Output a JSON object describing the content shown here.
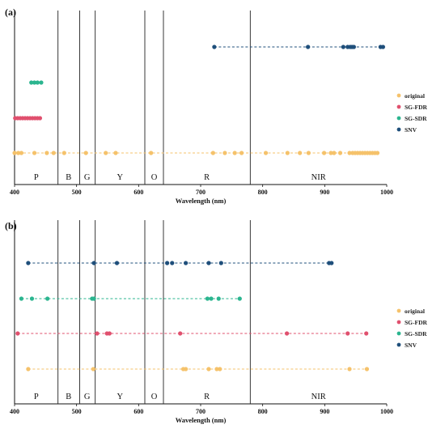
{
  "chart_data": [
    {
      "type": "scatter",
      "panel_label": "(a)",
      "xlabel": "Wavelength (nm)",
      "ylabel": "",
      "xlim": [
        400,
        1000
      ],
      "xticks": [
        "400",
        "500",
        "600",
        "700",
        "800",
        "900",
        "1000"
      ],
      "region_boundaries": [
        470,
        505,
        530,
        610,
        640,
        780
      ],
      "regions": [
        {
          "label": "P",
          "x": 435
        },
        {
          "label": "B",
          "x": 487
        },
        {
          "label": "G",
          "x": 517
        },
        {
          "label": "Y",
          "x": 570
        },
        {
          "label": "O",
          "x": 625
        },
        {
          "label": "R",
          "x": 710
        },
        {
          "label": "NIR",
          "x": 890
        }
      ],
      "legend": {
        "position": "right",
        "entries": [
          "original",
          "SG-FDR",
          "SG-SDR",
          "SNV"
        ]
      },
      "series": [
        {
          "name": "original",
          "color": "#f5c26b",
          "row": 0,
          "x": [
            400,
            406,
            411,
            432,
            452,
            463,
            480,
            515,
            547,
            563,
            620,
            720,
            739,
            755,
            766,
            805,
            840,
            860,
            874,
            899,
            910,
            915,
            925,
            940,
            945,
            949,
            953,
            957,
            961,
            965,
            969,
            973,
            977,
            981,
            985
          ]
        },
        {
          "name": "SG-FDR",
          "color": "#e0506e",
          "row": 1,
          "x": [
            401,
            405,
            409,
            413,
            417,
            421,
            425,
            429,
            433,
            437,
            441
          ]
        },
        {
          "name": "SG-SDR",
          "color": "#2bb58f",
          "row": 2,
          "x": [
            427,
            432,
            437,
            443
          ]
        },
        {
          "name": "SNV",
          "color": "#1f4f7b",
          "row": 3,
          "x": [
            722,
            873,
            930,
            937,
            941,
            944,
            947,
            990,
            994
          ]
        }
      ]
    },
    {
      "type": "scatter",
      "panel_label": "(b)",
      "xlabel": "Wavelength (nm)",
      "ylabel": "",
      "xlim": [
        400,
        1000
      ],
      "xticks": [
        "400",
        "500",
        "600",
        "700",
        "800",
        "900",
        "1000"
      ],
      "region_boundaries": [
        470,
        505,
        530,
        610,
        640,
        780
      ],
      "regions": [
        {
          "label": "P",
          "x": 435
        },
        {
          "label": "B",
          "x": 487
        },
        {
          "label": "G",
          "x": 517
        },
        {
          "label": "Y",
          "x": 570
        },
        {
          "label": "O",
          "x": 625
        },
        {
          "label": "R",
          "x": 710
        },
        {
          "label": "NIR",
          "x": 890
        }
      ],
      "legend": {
        "position": "right",
        "entries": [
          "original",
          "SG-FDR",
          "SG-SDR",
          "SNV"
        ]
      },
      "series": [
        {
          "name": "original",
          "color": "#f5c26b",
          "row": 0,
          "x": [
            422,
            527,
            672,
            676,
            713,
            726,
            731,
            940,
            968
          ]
        },
        {
          "name": "SG-FDR",
          "color": "#e0506e",
          "row": 1,
          "x": [
            405,
            533,
            549,
            553,
            667,
            839,
            937,
            967
          ]
        },
        {
          "name": "SG-SDR",
          "color": "#2bb58f",
          "row": 2,
          "x": [
            411,
            428,
            453,
            525,
            528,
            711,
            717,
            729,
            763
          ]
        },
        {
          "name": "SNV",
          "color": "#1f4f7b",
          "row": 3,
          "x": [
            422,
            528,
            565,
            646,
            654,
            676,
            713,
            733,
            907,
            911
          ]
        }
      ]
    }
  ]
}
